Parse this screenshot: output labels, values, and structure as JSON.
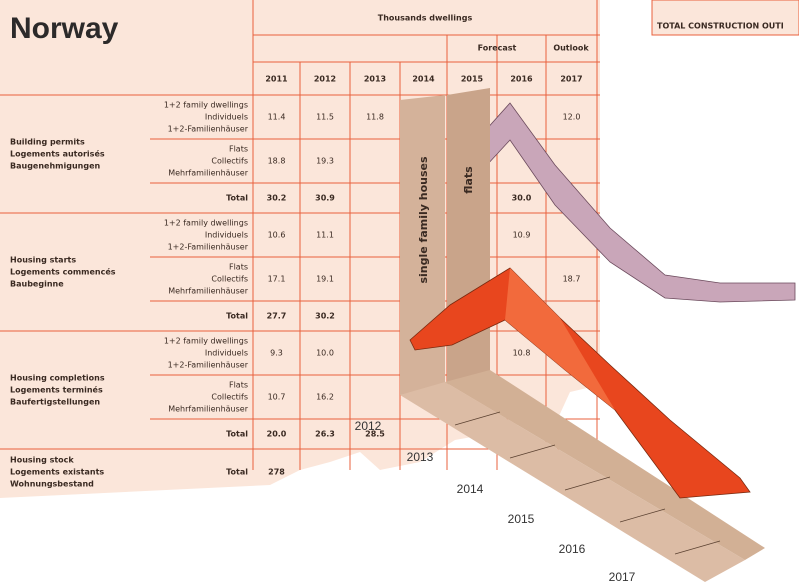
{
  "title": "Norway",
  "corner_box": "TOTAL CONSTRUCTION OUTI",
  "header": {
    "unit": "Thousands dwellings",
    "forecast": "Forecast",
    "outlook": "Outlook",
    "years": [
      "2011",
      "2012",
      "2013",
      "2014",
      "2015",
      "2016",
      "2017"
    ]
  },
  "groups": [
    {
      "label": [
        "Building permits",
        "Logements autorisés",
        "Baugenehmigungen"
      ],
      "rows": [
        {
          "label": [
            "1+2 family dwellings",
            "Individuels",
            "1+2-Familienhäuser"
          ],
          "values": [
            "11.4",
            "11.5",
            "11.8",
            null,
            null,
            null,
            "12.0"
          ]
        },
        {
          "label": [
            "Flats",
            "Collectifs",
            "Mehrfamilienhäuser"
          ],
          "values": [
            "18.8",
            "19.3",
            null,
            null,
            null,
            null,
            null
          ]
        },
        {
          "label": [
            "Total"
          ],
          "values": [
            "30.2",
            "30.9",
            null,
            null,
            null,
            "30.0",
            null
          ]
        }
      ]
    },
    {
      "label": [
        "Housing starts",
        "Logements commencés",
        "Baubeginne"
      ],
      "rows": [
        {
          "label": [
            "1+2 family dwellings",
            "Individuels",
            "1+2-Familienhäuser"
          ],
          "values": [
            "10.6",
            "11.1",
            null,
            null,
            null,
            "10.9",
            null
          ]
        },
        {
          "label": [
            "Flats",
            "Collectifs",
            "Mehrfamilienhäuser"
          ],
          "values": [
            "17.1",
            "19.1",
            null,
            null,
            null,
            null,
            "18.7"
          ]
        },
        {
          "label": [
            "Total"
          ],
          "values": [
            "27.7",
            "30.2",
            null,
            null,
            null,
            null,
            null
          ]
        }
      ]
    },
    {
      "label": [
        "Housing completions",
        "Logements terminés",
        "Baufertigstellungen"
      ],
      "rows": [
        {
          "label": [
            "1+2 family dwellings",
            "Individuels",
            "1+2-Familienhäuser"
          ],
          "values": [
            "9.3",
            "10.0",
            null,
            null,
            null,
            "10.8",
            null
          ]
        },
        {
          "label": [
            "Flats",
            "Collectifs",
            "Mehrfamilienhäuser"
          ],
          "values": [
            "10.7",
            "16.2",
            null,
            null,
            null,
            null,
            null
          ]
        },
        {
          "label": [
            "Total"
          ],
          "values": [
            "20.0",
            "26.3",
            "28.5",
            null,
            null,
            null,
            null
          ]
        }
      ]
    },
    {
      "label": [
        "Housing stock",
        "Logements existants",
        "Wohnungsbestand"
      ],
      "rows": [
        {
          "label": [
            "Total"
          ],
          "values": [
            "278",
            null,
            null,
            null,
            null,
            null,
            null
          ]
        }
      ]
    }
  ],
  "overlay": {
    "series_labels": [
      "single family houses",
      "flats"
    ],
    "years": [
      "2012",
      "2013",
      "2014",
      "2015",
      "2016",
      "2017"
    ]
  }
}
